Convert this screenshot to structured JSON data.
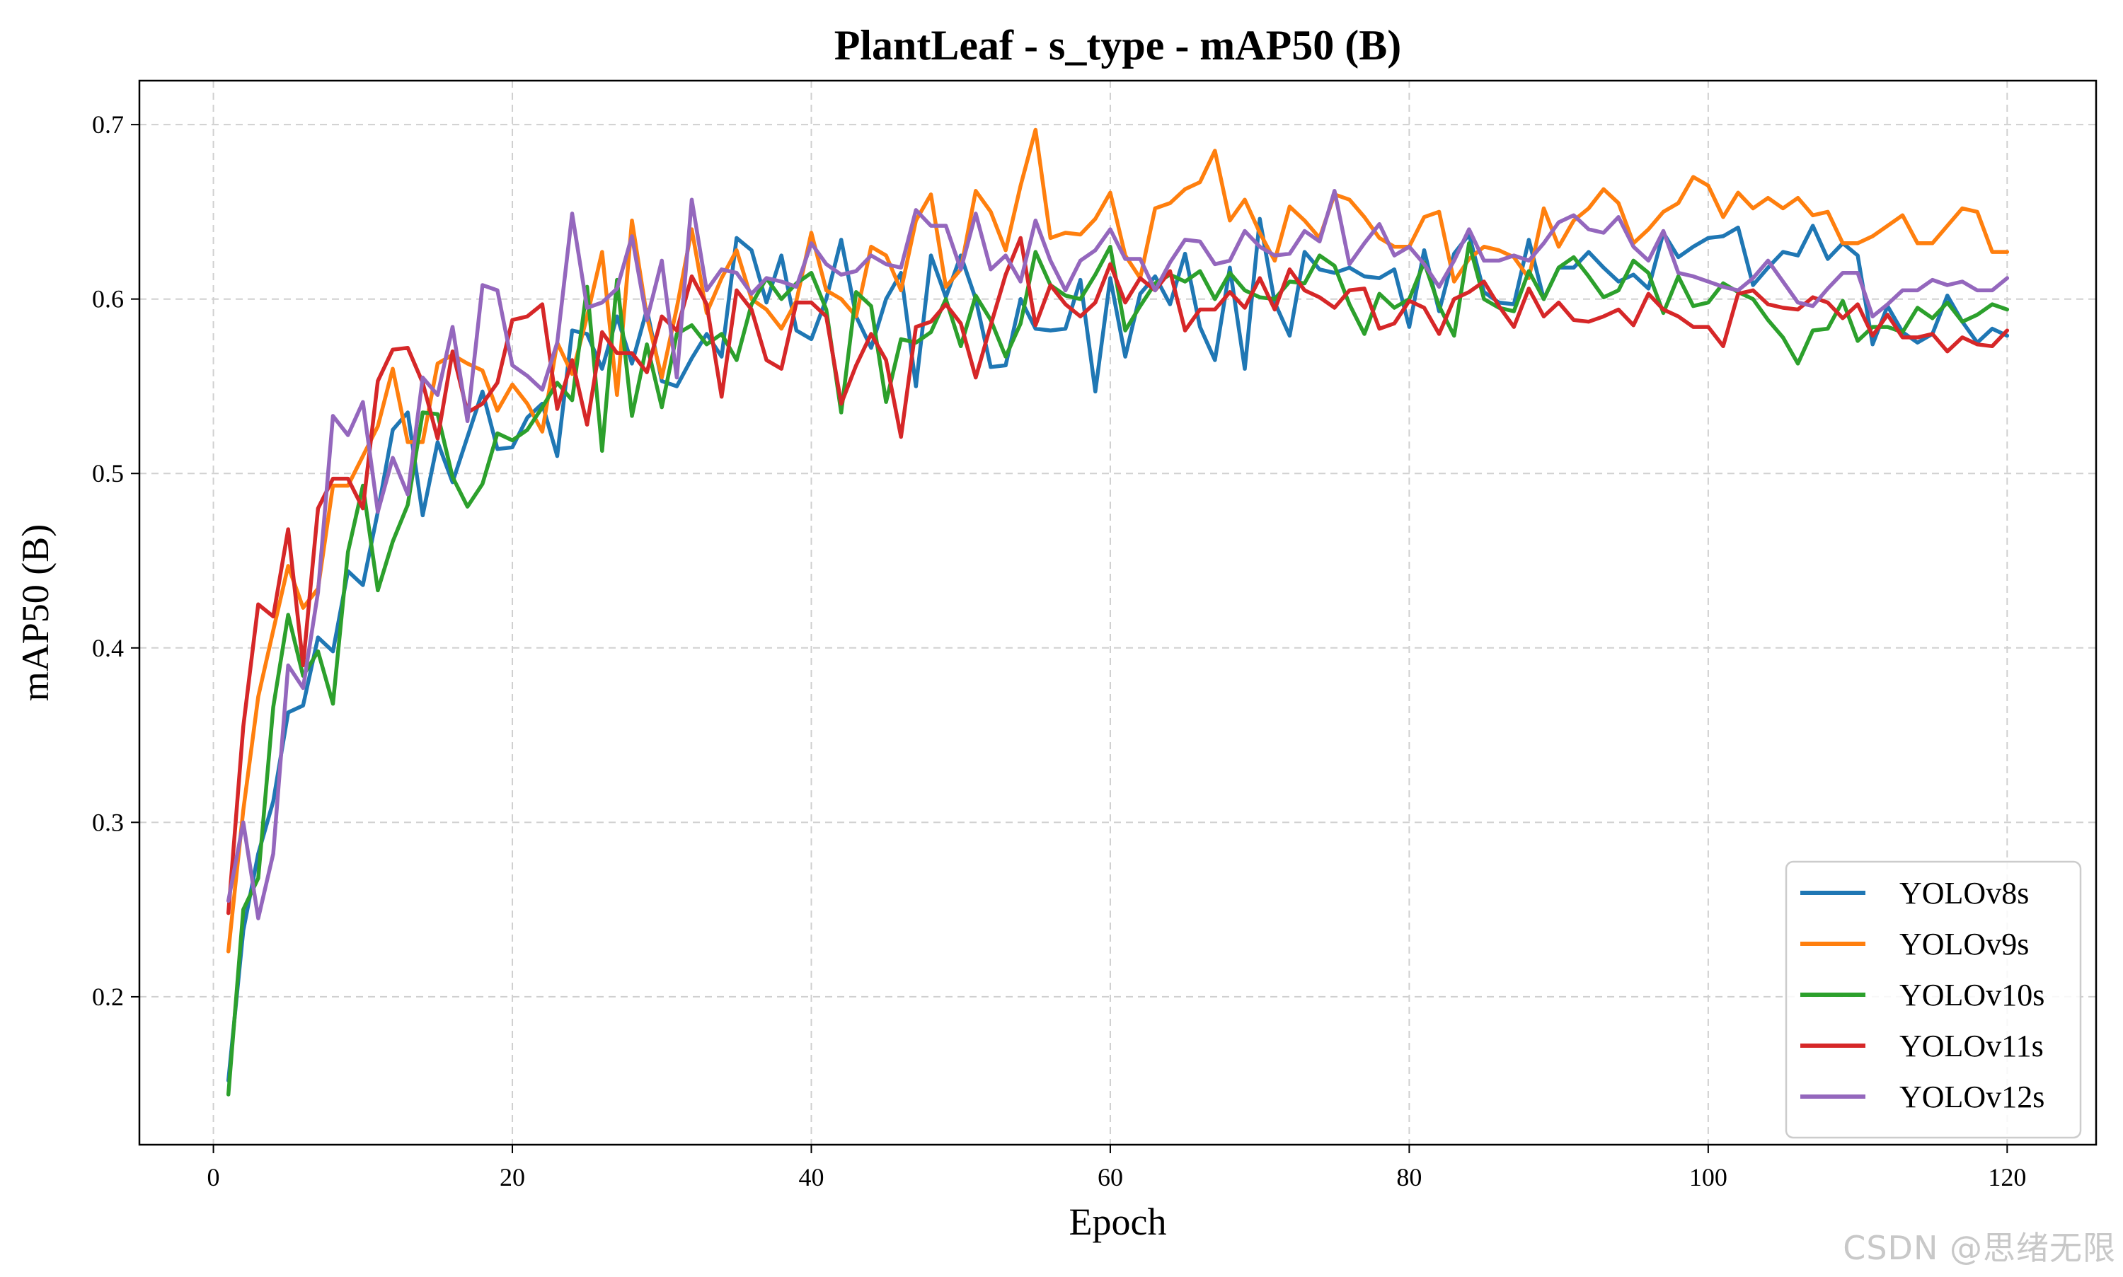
{
  "chart_data": {
    "type": "line",
    "title": "PlantLeaf - s_type - mAP50 (B)",
    "xlabel": "Epoch",
    "ylabel": "mAP50 (B)",
    "xlim": [
      -4.95,
      125.95
    ],
    "ylim": [
      0.1152,
      0.7252
    ],
    "xticks": [
      0,
      20,
      40,
      60,
      80,
      100,
      120
    ],
    "yticks": [
      0.2,
      0.3,
      0.4,
      0.5,
      0.6,
      0.7
    ],
    "grid": true,
    "legend_position": "lower-right",
    "x": [
      1,
      2,
      3,
      4,
      5,
      6,
      7,
      8,
      9,
      10,
      11,
      12,
      13,
      14,
      15,
      16,
      17,
      18,
      19,
      20,
      21,
      22,
      23,
      24,
      25,
      26,
      27,
      28,
      29,
      30,
      31,
      32,
      33,
      34,
      35,
      36,
      37,
      38,
      39,
      40,
      41,
      42,
      43,
      44,
      45,
      46,
      47,
      48,
      49,
      50,
      51,
      52,
      53,
      54,
      55,
      56,
      57,
      58,
      59,
      60,
      61,
      62,
      63,
      64,
      65,
      66,
      67,
      68,
      69,
      70,
      71,
      72,
      73,
      74,
      75,
      76,
      77,
      78,
      79,
      80,
      81,
      82,
      83,
      84,
      85,
      86,
      87,
      88,
      89,
      90,
      91,
      92,
      93,
      94,
      95,
      96,
      97,
      98,
      99,
      100,
      101,
      102,
      103,
      104,
      105,
      106,
      107,
      108,
      109,
      110,
      111,
      112,
      113,
      114,
      115,
      116,
      117,
      118,
      119,
      120
    ],
    "series": [
      {
        "name": "YOLOv8s",
        "color": "#1f77b4",
        "values": [
          0.152,
          0.238,
          0.282,
          0.312,
          0.363,
          0.367,
          0.406,
          0.398,
          0.444,
          0.436,
          0.478,
          0.525,
          0.535,
          0.476,
          0.518,
          0.495,
          0.521,
          0.547,
          0.514,
          0.515,
          0.532,
          0.54,
          0.51,
          0.582,
          0.58,
          0.56,
          0.59,
          0.563,
          0.594,
          0.553,
          0.55,
          0.566,
          0.58,
          0.567,
          0.635,
          0.628,
          0.598,
          0.625,
          0.582,
          0.577,
          0.6,
          0.634,
          0.59,
          0.572,
          0.6,
          0.615,
          0.55,
          0.625,
          0.601,
          0.625,
          0.6,
          0.561,
          0.562,
          0.6,
          0.583,
          0.582,
          0.583,
          0.611,
          0.547,
          0.612,
          0.567,
          0.603,
          0.613,
          0.597,
          0.626,
          0.584,
          0.565,
          0.618,
          0.56,
          0.646,
          0.598,
          0.579,
          0.627,
          0.617,
          0.615,
          0.618,
          0.613,
          0.612,
          0.617,
          0.584,
          0.628,
          0.593,
          0.626,
          0.637,
          0.604,
          0.598,
          0.597,
          0.634,
          0.6,
          0.618,
          0.618,
          0.627,
          0.618,
          0.61,
          0.614,
          0.606,
          0.638,
          0.624,
          0.63,
          0.635,
          0.636,
          0.641,
          0.608,
          0.618,
          0.627,
          0.625,
          0.642,
          0.623,
          0.632,
          0.625,
          0.574,
          0.596,
          0.581,
          0.575,
          0.58,
          0.602,
          0.587,
          0.575,
          0.583,
          0.579
        ]
      },
      {
        "name": "YOLOv9s",
        "color": "#ff7f0e",
        "values": [
          0.226,
          0.307,
          0.372,
          0.41,
          0.447,
          0.423,
          0.434,
          0.493,
          0.493,
          0.51,
          0.527,
          0.56,
          0.518,
          0.518,
          0.563,
          0.568,
          0.563,
          0.559,
          0.536,
          0.551,
          0.54,
          0.524,
          0.575,
          0.557,
          0.59,
          0.627,
          0.545,
          0.645,
          0.59,
          0.555,
          0.595,
          0.64,
          0.592,
          0.612,
          0.628,
          0.6,
          0.594,
          0.583,
          0.599,
          0.638,
          0.605,
          0.6,
          0.59,
          0.63,
          0.625,
          0.605,
          0.645,
          0.66,
          0.607,
          0.617,
          0.662,
          0.65,
          0.628,
          0.665,
          0.697,
          0.635,
          0.638,
          0.637,
          0.646,
          0.661,
          0.625,
          0.612,
          0.652,
          0.655,
          0.663,
          0.667,
          0.685,
          0.645,
          0.657,
          0.638,
          0.622,
          0.653,
          0.645,
          0.635,
          0.66,
          0.657,
          0.647,
          0.635,
          0.63,
          0.63,
          0.647,
          0.65,
          0.61,
          0.623,
          0.63,
          0.628,
          0.624,
          0.612,
          0.652,
          0.63,
          0.645,
          0.652,
          0.663,
          0.655,
          0.632,
          0.64,
          0.65,
          0.655,
          0.67,
          0.665,
          0.647,
          0.661,
          0.652,
          0.658,
          0.652,
          0.658,
          0.648,
          0.65,
          0.632,
          0.632,
          0.636,
          0.642,
          0.648,
          0.632,
          0.632,
          0.642,
          0.652,
          0.65,
          0.627,
          0.627
        ]
      },
      {
        "name": "YOLOv10s",
        "color": "#2ca02c",
        "values": [
          0.144,
          0.25,
          0.268,
          0.366,
          0.419,
          0.384,
          0.398,
          0.368,
          0.455,
          0.493,
          0.433,
          0.461,
          0.482,
          0.535,
          0.534,
          0.498,
          0.481,
          0.494,
          0.523,
          0.519,
          0.525,
          0.538,
          0.552,
          0.542,
          0.607,
          0.513,
          0.611,
          0.533,
          0.574,
          0.538,
          0.58,
          0.585,
          0.574,
          0.58,
          0.565,
          0.597,
          0.612,
          0.6,
          0.609,
          0.615,
          0.594,
          0.535,
          0.604,
          0.596,
          0.541,
          0.577,
          0.575,
          0.581,
          0.6,
          0.573,
          0.602,
          0.588,
          0.567,
          0.586,
          0.627,
          0.608,
          0.602,
          0.6,
          0.614,
          0.63,
          0.582,
          0.596,
          0.609,
          0.614,
          0.61,
          0.616,
          0.6,
          0.615,
          0.605,
          0.601,
          0.6,
          0.61,
          0.609,
          0.625,
          0.619,
          0.597,
          0.58,
          0.603,
          0.595,
          0.6,
          0.621,
          0.596,
          0.579,
          0.632,
          0.6,
          0.595,
          0.593,
          0.616,
          0.6,
          0.618,
          0.624,
          0.613,
          0.601,
          0.605,
          0.622,
          0.615,
          0.592,
          0.613,
          0.596,
          0.598,
          0.609,
          0.604,
          0.6,
          0.588,
          0.578,
          0.563,
          0.582,
          0.583,
          0.599,
          0.576,
          0.584,
          0.584,
          0.581,
          0.595,
          0.589,
          0.598,
          0.587,
          0.591,
          0.597,
          0.594
        ]
      },
      {
        "name": "YOLOv11s",
        "color": "#d62728",
        "values": [
          0.248,
          0.355,
          0.425,
          0.418,
          0.468,
          0.39,
          0.48,
          0.497,
          0.497,
          0.48,
          0.553,
          0.571,
          0.572,
          0.552,
          0.52,
          0.57,
          0.535,
          0.54,
          0.552,
          0.588,
          0.59,
          0.597,
          0.537,
          0.565,
          0.528,
          0.581,
          0.569,
          0.569,
          0.558,
          0.59,
          0.582,
          0.613,
          0.597,
          0.544,
          0.605,
          0.594,
          0.565,
          0.56,
          0.598,
          0.598,
          0.59,
          0.54,
          0.562,
          0.58,
          0.565,
          0.521,
          0.584,
          0.587,
          0.597,
          0.586,
          0.555,
          0.585,
          0.614,
          0.635,
          0.585,
          0.608,
          0.597,
          0.59,
          0.598,
          0.62,
          0.598,
          0.612,
          0.605,
          0.616,
          0.582,
          0.594,
          0.594,
          0.604,
          0.595,
          0.612,
          0.594,
          0.617,
          0.605,
          0.601,
          0.595,
          0.605,
          0.606,
          0.583,
          0.586,
          0.599,
          0.595,
          0.58,
          0.6,
          0.604,
          0.61,
          0.596,
          0.584,
          0.606,
          0.59,
          0.598,
          0.588,
          0.587,
          0.59,
          0.594,
          0.585,
          0.603,
          0.594,
          0.59,
          0.584,
          0.584,
          0.573,
          0.603,
          0.605,
          0.597,
          0.595,
          0.594,
          0.601,
          0.598,
          0.589,
          0.597,
          0.579,
          0.591,
          0.578,
          0.578,
          0.58,
          0.57,
          0.578,
          0.574,
          0.573,
          0.582
        ]
      },
      {
        "name": "YOLOv12s",
        "color": "#9467bd",
        "values": [
          0.255,
          0.3,
          0.245,
          0.282,
          0.39,
          0.377,
          0.432,
          0.533,
          0.522,
          0.541,
          0.478,
          0.509,
          0.488,
          0.555,
          0.545,
          0.584,
          0.53,
          0.608,
          0.605,
          0.562,
          0.556,
          0.548,
          0.575,
          0.649,
          0.595,
          0.598,
          0.606,
          0.636,
          0.588,
          0.622,
          0.555,
          0.657,
          0.605,
          0.617,
          0.615,
          0.603,
          0.612,
          0.61,
          0.607,
          0.632,
          0.62,
          0.614,
          0.616,
          0.625,
          0.62,
          0.618,
          0.651,
          0.642,
          0.642,
          0.617,
          0.649,
          0.617,
          0.625,
          0.61,
          0.645,
          0.622,
          0.605,
          0.622,
          0.628,
          0.64,
          0.623,
          0.623,
          0.605,
          0.621,
          0.634,
          0.633,
          0.62,
          0.622,
          0.639,
          0.63,
          0.625,
          0.626,
          0.639,
          0.633,
          0.662,
          0.62,
          0.632,
          0.643,
          0.625,
          0.63,
          0.62,
          0.607,
          0.622,
          0.64,
          0.622,
          0.622,
          0.625,
          0.622,
          0.632,
          0.644,
          0.648,
          0.64,
          0.638,
          0.647,
          0.63,
          0.622,
          0.639,
          0.615,
          0.613,
          0.61,
          0.607,
          0.605,
          0.612,
          0.622,
          0.61,
          0.598,
          0.596,
          0.606,
          0.615,
          0.615,
          0.59,
          0.597,
          0.605,
          0.605,
          0.611,
          0.608,
          0.61,
          0.605,
          0.605,
          0.612
        ]
      }
    ]
  },
  "watermark": "CSDN @思绪无限"
}
